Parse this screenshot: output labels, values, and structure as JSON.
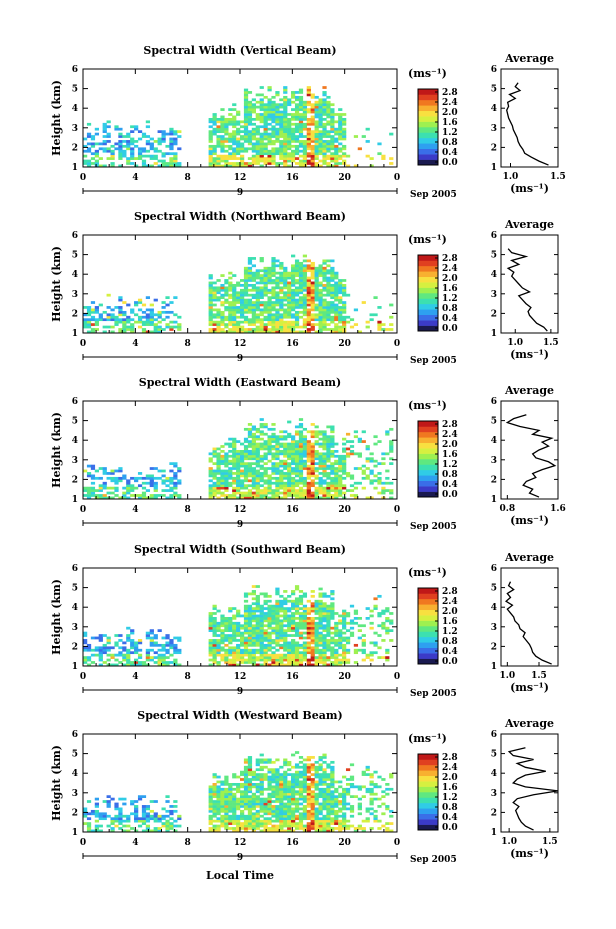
{
  "figure": {
    "xlabel": "Local Time",
    "date_label": "Sep 2005",
    "day_label": "9",
    "ylabel": "Height (km)",
    "cbar_unit": "(ms⁻¹)",
    "avg_title": "Average",
    "avg_xlabel": "(ms⁻¹)"
  },
  "colorbar": {
    "ticks": [
      "0.0",
      "0.4",
      "0.8",
      "1.2",
      "1.6",
      "2.0",
      "2.4",
      "2.8"
    ],
    "colors": [
      "#1a1a50",
      "#3b3bc8",
      "#3a6ee8",
      "#2ea0f0",
      "#30cce6",
      "#3ce0b0",
      "#5fe880",
      "#9ef050",
      "#d6f040",
      "#f8e040",
      "#f8b030",
      "#f07820",
      "#e04020",
      "#c01818"
    ]
  },
  "chart_data": [
    {
      "type": "heatmap",
      "title": "Spectral Width (Vertical Beam)",
      "x_ticks": [
        "0",
        "4",
        "8",
        "12",
        "16",
        "20",
        "0"
      ],
      "y_ticks": [
        "1",
        "2",
        "3",
        "4",
        "5",
        "6"
      ],
      "xlim": [
        0,
        24
      ],
      "ylim": [
        1,
        6
      ],
      "profile": {
        "ticks": [
          "1.0",
          "1.5"
        ],
        "xlim": [
          0.9,
          1.5
        ],
        "x": [
          1.4,
          1.3,
          1.22,
          1.15,
          1.13,
          1.1,
          1.08,
          1.07,
          1.05,
          1.03,
          1.02,
          1.0,
          0.98,
          0.97,
          0.96,
          0.98,
          0.97,
          1.05,
          0.99,
          1.1,
          1.05,
          1.08
        ],
        "y": [
          1.1,
          1.3,
          1.5,
          1.7,
          1.9,
          2.1,
          2.3,
          2.5,
          2.7,
          2.9,
          3.1,
          3.3,
          3.5,
          3.7,
          3.9,
          4.1,
          4.3,
          4.5,
          4.7,
          4.9,
          5.1,
          5.3
        ]
      }
    },
    {
      "type": "heatmap",
      "title": "Spectral Width (Northward Beam)",
      "x_ticks": [
        "0",
        "4",
        "8",
        "12",
        "16",
        "20",
        "0"
      ],
      "y_ticks": [
        "1",
        "2",
        "3",
        "4",
        "5",
        "6"
      ],
      "xlim": [
        0,
        24
      ],
      "ylim": [
        1,
        6
      ],
      "profile": {
        "ticks": [
          "1.0",
          "1.5"
        ],
        "xlim": [
          0.8,
          1.6
        ],
        "x": [
          1.45,
          1.4,
          1.3,
          1.25,
          1.2,
          1.18,
          1.22,
          1.15,
          1.1,
          1.05,
          1.2,
          1.1,
          1.05,
          1.0,
          0.95,
          0.98,
          0.9,
          1.05,
          0.95,
          1.15,
          0.95,
          0.9
        ],
        "y": [
          1.1,
          1.3,
          1.5,
          1.7,
          1.9,
          2.1,
          2.3,
          2.5,
          2.7,
          2.9,
          3.1,
          3.3,
          3.5,
          3.7,
          3.9,
          4.1,
          4.3,
          4.5,
          4.7,
          4.9,
          5.1,
          5.3
        ]
      }
    },
    {
      "type": "heatmap",
      "title": "Spectral Width (Eastward Beam)",
      "x_ticks": [
        "0",
        "4",
        "8",
        "12",
        "16",
        "20",
        "0"
      ],
      "y_ticks": [
        "1",
        "2",
        "3",
        "4",
        "5",
        "6"
      ],
      "xlim": [
        0,
        24
      ],
      "ylim": [
        1,
        6
      ],
      "profile": {
        "ticks": [
          "0.8",
          "1.6"
        ],
        "xlim": [
          0.7,
          1.6
        ],
        "x": [
          1.3,
          1.15,
          1.2,
          1.05,
          1.1,
          1.25,
          1.2,
          1.35,
          1.55,
          1.45,
          1.25,
          1.2,
          1.3,
          1.45,
          1.35,
          1.5,
          1.2,
          1.3,
          1.0,
          0.8,
          0.9,
          1.1
        ],
        "y": [
          1.1,
          1.3,
          1.5,
          1.7,
          1.9,
          2.1,
          2.3,
          2.5,
          2.7,
          2.9,
          3.1,
          3.3,
          3.5,
          3.7,
          3.9,
          4.1,
          4.3,
          4.5,
          4.7,
          4.9,
          5.1,
          5.3
        ]
      }
    },
    {
      "type": "heatmap",
      "title": "Spectral Width (Southward Beam)",
      "x_ticks": [
        "0",
        "4",
        "8",
        "12",
        "16",
        "20",
        "0"
      ],
      "y_ticks": [
        "1",
        "2",
        "3",
        "4",
        "5",
        "6"
      ],
      "xlim": [
        0,
        24
      ],
      "ylim": [
        1,
        6
      ],
      "profile": {
        "ticks": [
          "1.0",
          "1.5"
        ],
        "xlim": [
          0.9,
          1.8
        ],
        "x": [
          1.7,
          1.55,
          1.45,
          1.4,
          1.38,
          1.35,
          1.3,
          1.25,
          1.28,
          1.2,
          1.18,
          1.12,
          1.1,
          1.05,
          1.0,
          1.08,
          0.98,
          1.05,
          1.0,
          1.1,
          1.02,
          1.05
        ],
        "y": [
          1.1,
          1.3,
          1.5,
          1.7,
          1.9,
          2.1,
          2.3,
          2.5,
          2.7,
          2.9,
          3.1,
          3.3,
          3.5,
          3.7,
          3.9,
          4.1,
          4.3,
          4.5,
          4.7,
          4.9,
          5.1,
          5.3
        ]
      }
    },
    {
      "type": "heatmap",
      "title": "Spectral Width (Westward Beam)",
      "x_ticks": [
        "0",
        "4",
        "8",
        "12",
        "16",
        "20",
        "0"
      ],
      "y_ticks": [
        "1",
        "2",
        "3",
        "4",
        "5",
        "6"
      ],
      "xlim": [
        0,
        24
      ],
      "ylim": [
        1,
        6
      ],
      "profile": {
        "ticks": [
          "1.0",
          "1.5"
        ],
        "xlim": [
          0.9,
          1.6
        ],
        "x": [
          1.3,
          1.2,
          1.15,
          1.12,
          1.1,
          1.08,
          1.12,
          1.05,
          1.1,
          1.3,
          1.6,
          1.2,
          1.05,
          1.1,
          1.2,
          1.45,
          1.2,
          1.1,
          1.3,
          1.05,
          1.0,
          1.2
        ],
        "y": [
          1.1,
          1.3,
          1.5,
          1.7,
          1.9,
          2.1,
          2.3,
          2.5,
          2.7,
          2.9,
          3.1,
          3.3,
          3.5,
          3.7,
          3.9,
          4.1,
          4.3,
          4.5,
          4.7,
          4.9,
          5.1,
          5.3
        ]
      }
    }
  ]
}
